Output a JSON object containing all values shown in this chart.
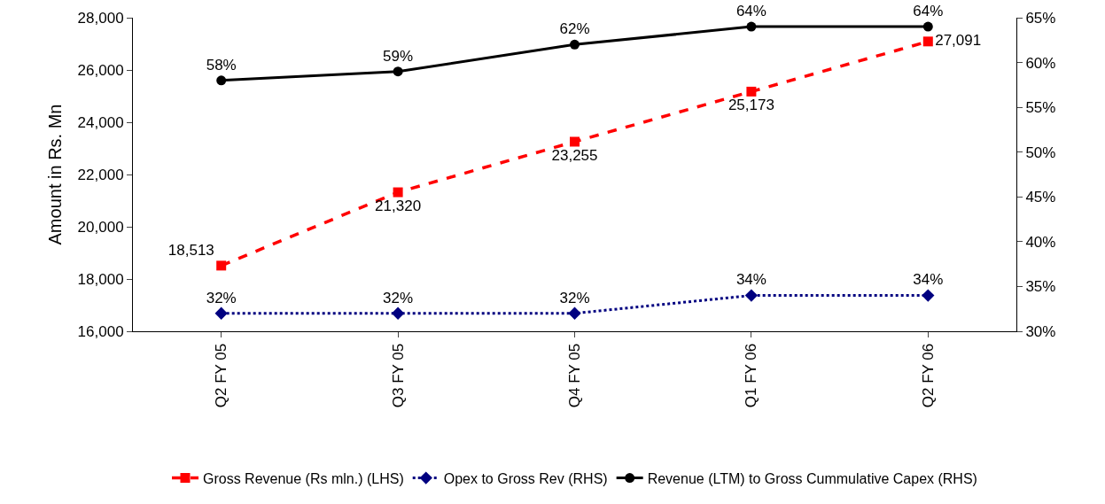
{
  "chart_data": {
    "type": "line",
    "ylabel": "Amount in Rs. Mn",
    "categories": [
      "Q2 FY 05",
      "Q3 FY 05",
      "Q4 FY 05",
      "Q1 FY 06",
      "Q2 FY 06"
    ],
    "series": [
      {
        "name": "Gross Revenue (Rs mln.) (LHS)",
        "color": "#ff0000",
        "values": [
          18513,
          21320,
          23255,
          25173,
          27091
        ],
        "value_labels": [
          "18,513",
          "21,320",
          "23,255",
          "25,173",
          "27,091"
        ],
        "marker": "square",
        "line_style": "dashed"
      },
      {
        "name": "Opex to Gross Rev (RHS)",
        "color": "#000080",
        "axis": "y2",
        "values": [
          32,
          32,
          32,
          34,
          34
        ],
        "value_labels": [
          "32%",
          "32%",
          "32%",
          "34%",
          "34%"
        ],
        "marker": "diamond",
        "line_style": "dotted"
      },
      {
        "name": "Revenue (LTM) to Gross Cummulative Capex (RHS)",
        "color": "#000000",
        "axis": "y2",
        "values": [
          58,
          59,
          62,
          64,
          64
        ],
        "value_labels": [
          "58%",
          "59%",
          "62%",
          "64%",
          "64%"
        ],
        "marker": "circle",
        "line_style": "solid"
      }
    ],
    "ylim": [
      16000,
      28000
    ],
    "yticks": [
      {
        "value": 16000,
        "label": "16,000"
      },
      {
        "value": 18000,
        "label": "18,000"
      },
      {
        "value": 20000,
        "label": "20,000"
      },
      {
        "value": 22000,
        "label": "22,000"
      },
      {
        "value": 24000,
        "label": "24,000"
      },
      {
        "value": 26000,
        "label": "26,000"
      },
      {
        "value": 28000,
        "label": "28,000"
      }
    ],
    "y2lim": [
      30,
      65
    ],
    "y2ticks": [
      {
        "value": 30,
        "label": "30%"
      },
      {
        "value": 35,
        "label": "35%"
      },
      {
        "value": 40,
        "label": "40%"
      },
      {
        "value": 45,
        "label": "45%"
      },
      {
        "value": 50,
        "label": "50%"
      },
      {
        "value": 55,
        "label": "55%"
      },
      {
        "value": 60,
        "label": "60%"
      },
      {
        "value": 65,
        "label": "65%"
      }
    ],
    "grid": false,
    "legend": "bottom"
  }
}
